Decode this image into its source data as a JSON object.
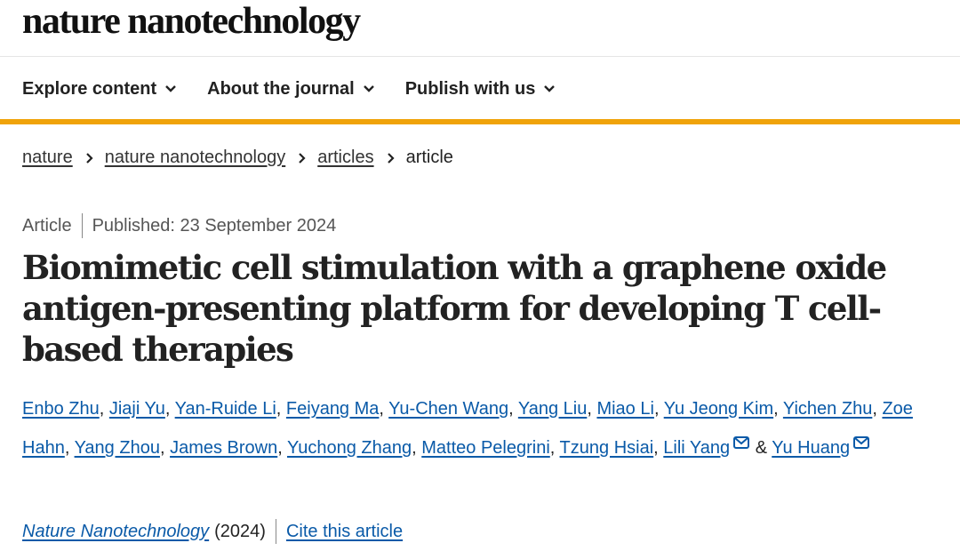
{
  "site": {
    "logo": "nature nanotechnology"
  },
  "nav": {
    "items": [
      {
        "label": "Explore content"
      },
      {
        "label": "About the journal"
      },
      {
        "label": "Publish with us"
      }
    ]
  },
  "breadcrumb": {
    "items": [
      "nature",
      "nature nanotechnology",
      "articles"
    ],
    "current": "article"
  },
  "article": {
    "type": "Article",
    "published": "Published: 23 September 2024",
    "title": "Biomimetic cell stimulation with a graphene oxide antigen-presenting platform for developing T cell-based therapies",
    "authors": [
      "Enbo Zhu",
      "Jiaji Yu",
      "Yan-Ruide Li",
      "Feiyang Ma",
      "Yu-Chen Wang",
      "Yang Liu",
      "Miao Li",
      "Yu Jeong Kim",
      "Yichen Zhu",
      "Zoe Hahn",
      "Yang Zhou",
      "James Brown",
      "Yuchong Zhang",
      "Matteo Pelegrini",
      "Tzung Hsiai",
      "Lili Yang",
      "Yu Huang"
    ],
    "author_separator": ", ",
    "author_last_separator": " & ",
    "journal": "Nature Nanotechnology",
    "year": "(2024)",
    "cite_label": "Cite this article"
  },
  "colors": {
    "accent_bar": "#f0a30a",
    "link": "#0a5aa8",
    "text": "#222222"
  },
  "icons": {
    "nav_chevron": "chevron-down-icon",
    "breadcrumb_separator": "chevron-right-icon",
    "corresponding_author": "mail-icon"
  }
}
